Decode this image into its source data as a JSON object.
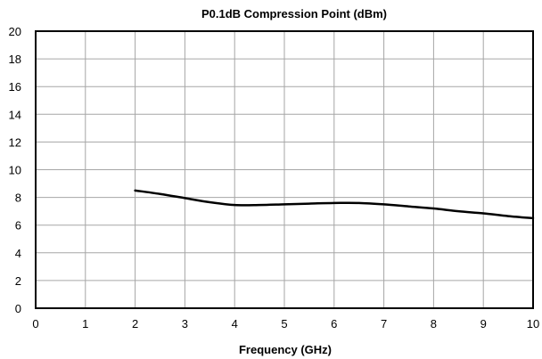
{
  "chart_data": {
    "type": "line",
    "title": "P0.1dB Compression Point (dBm)",
    "xlabel": "Frequency (GHz)",
    "ylabel": "",
    "xlim": [
      0,
      10
    ],
    "ylim": [
      0,
      20
    ],
    "xticks": [
      "0",
      "1",
      "2",
      "3",
      "4",
      "5",
      "6",
      "7",
      "8",
      "9",
      "10"
    ],
    "yticks": [
      "0",
      "2",
      "4",
      "6",
      "8",
      "10",
      "12",
      "14",
      "16",
      "18",
      "20"
    ],
    "grid": true,
    "legend": "none",
    "series": [
      {
        "color": "#000000",
        "x": [
          2,
          2.5,
          3,
          3.5,
          4,
          4.5,
          5,
          5.5,
          6,
          6.5,
          7,
          7.5,
          8,
          8.5,
          9,
          9.5,
          10
        ],
        "y": [
          8.5,
          8.25,
          7.95,
          7.65,
          7.45,
          7.45,
          7.5,
          7.55,
          7.6,
          7.6,
          7.5,
          7.35,
          7.2,
          7.0,
          6.85,
          6.65,
          6.5
        ]
      }
    ]
  }
}
